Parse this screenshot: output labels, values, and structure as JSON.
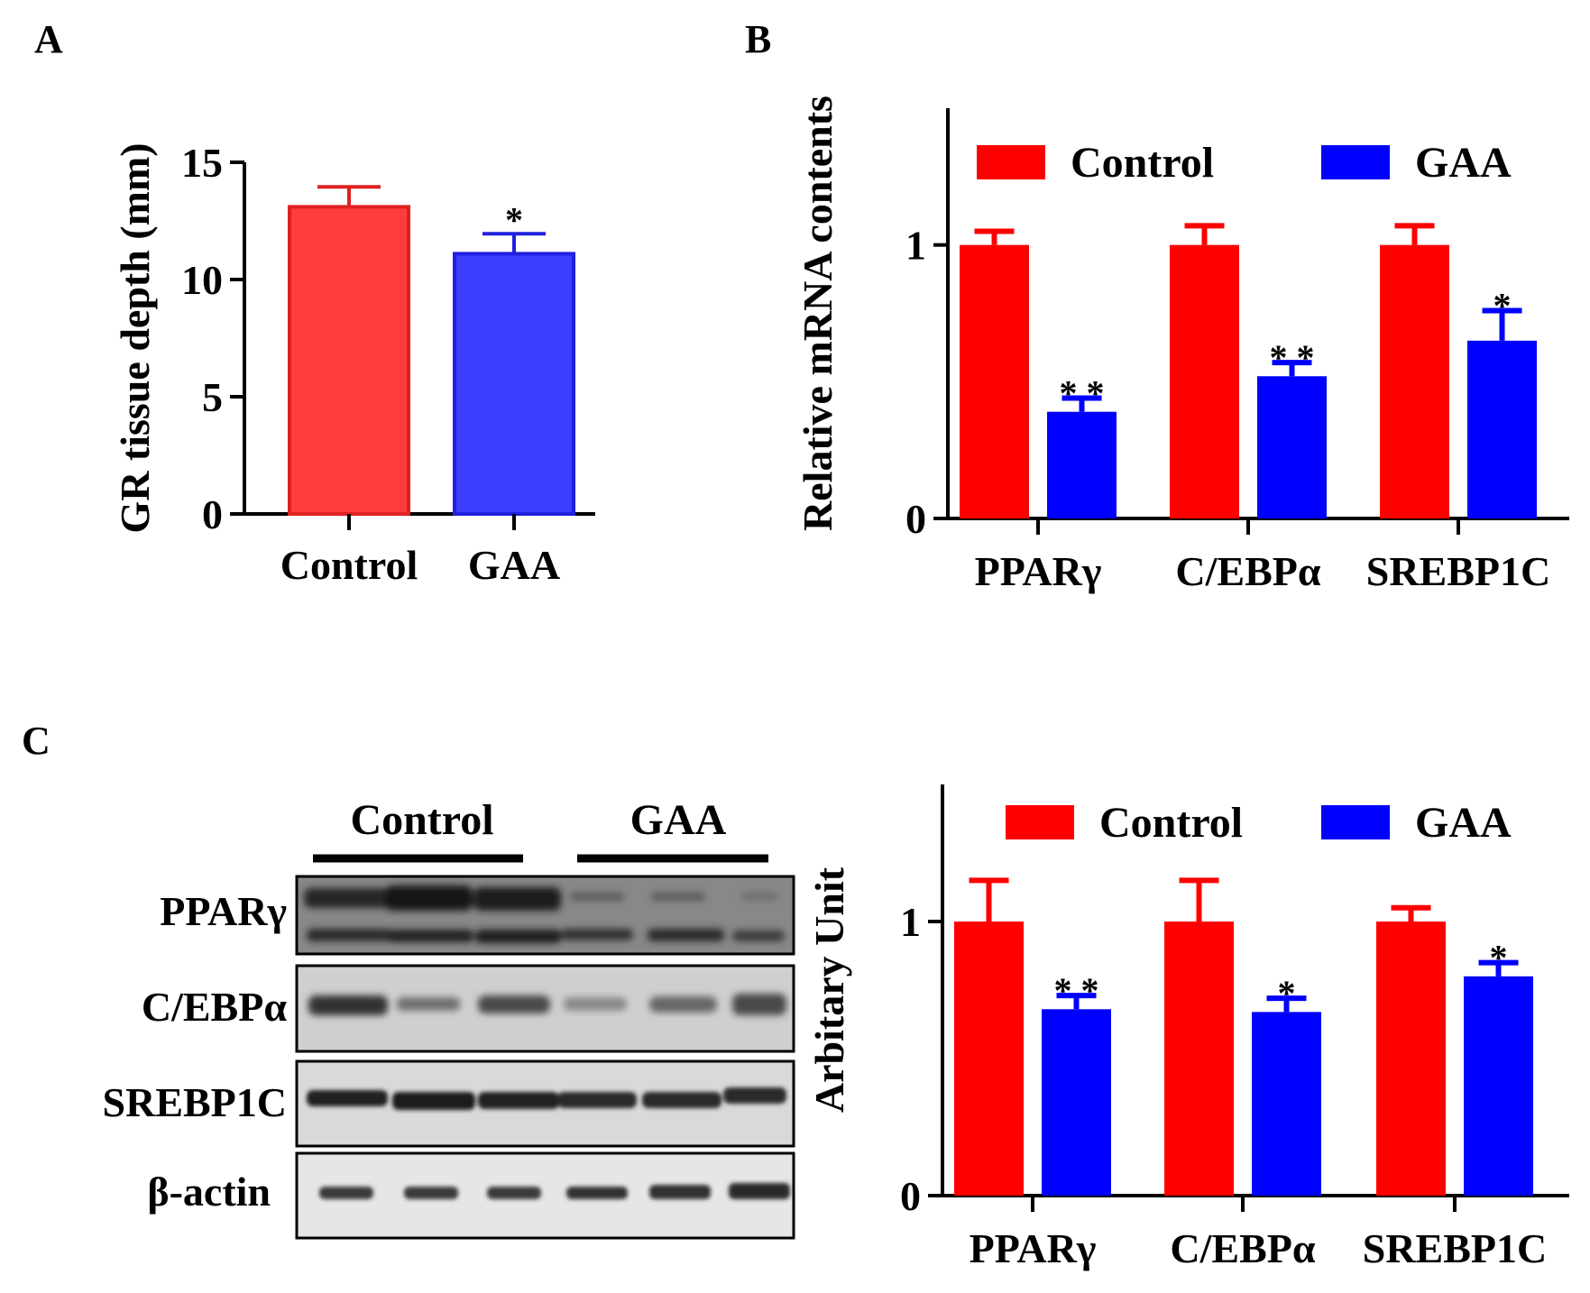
{
  "panels": {
    "a": "A",
    "b": "B",
    "c": "C"
  },
  "colors": {
    "control_a": "#ff3b3b",
    "gaa_a": "#3d3dff",
    "control": "#ff0000",
    "gaa": "#0000ff"
  },
  "blot": {
    "group_labels": [
      "Control",
      "GAA"
    ],
    "protein_labels": [
      "PPARγ",
      "C/EBPα",
      "SREBP1C",
      "β-actin"
    ],
    "lanes_per_group": 3
  },
  "chart_data": [
    {
      "id": "A",
      "type": "bar",
      "categories": [
        "Control",
        "GAA"
      ],
      "values": [
        13.1,
        11.1
      ],
      "errors": [
        0.85,
        0.85
      ],
      "significance": [
        "",
        "*"
      ],
      "ylabel": "GR tissue depth (mm)",
      "ylim": [
        0,
        15
      ],
      "yticks": [
        "0",
        "5",
        "10",
        "15"
      ]
    },
    {
      "id": "B",
      "type": "bar",
      "categories": [
        "PPARγ",
        "C/EBPα",
        "SREBP1C"
      ],
      "series": [
        {
          "name": "Control",
          "values": [
            1.0,
            1.0,
            1.0
          ],
          "errors": [
            0.05,
            0.07,
            0.07
          ],
          "significance": [
            "",
            "",
            ""
          ]
        },
        {
          "name": "GAA",
          "values": [
            0.39,
            0.52,
            0.65
          ],
          "errors": [
            0.05,
            0.05,
            0.11
          ],
          "significance": [
            "* *",
            "* *",
            "*"
          ]
        }
      ],
      "ylabel": "Relative mRNA contents",
      "ylim": [
        0,
        1.5
      ],
      "yticks": [
        "0",
        "1"
      ],
      "legend": "top"
    },
    {
      "id": "C",
      "type": "bar",
      "categories": [
        "PPARγ",
        "C/EBPα",
        "SREBP1C"
      ],
      "series": [
        {
          "name": "Control",
          "values": [
            1.0,
            1.0,
            1.0
          ],
          "errors": [
            0.15,
            0.15,
            0.05
          ],
          "significance": [
            "",
            "",
            ""
          ]
        },
        {
          "name": "GAA",
          "values": [
            0.68,
            0.67,
            0.8
          ],
          "errors": [
            0.05,
            0.05,
            0.05
          ],
          "significance": [
            "* *",
            "*",
            "*"
          ]
        }
      ],
      "ylabel": "Arbitary Unit",
      "ylim": [
        0,
        1.5
      ],
      "yticks": [
        "0",
        "1"
      ],
      "legend": "top"
    }
  ]
}
